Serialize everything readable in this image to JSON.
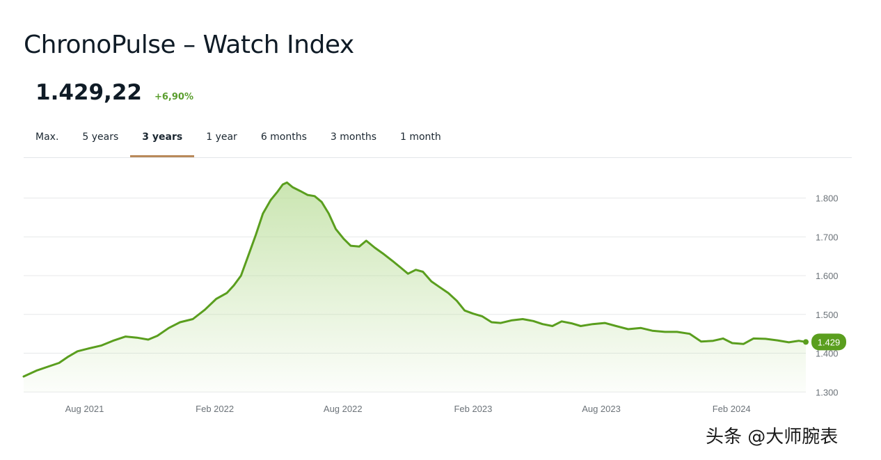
{
  "page": {
    "title": "ChronoPulse – Watch Index"
  },
  "price": {
    "value": "1.429,22",
    "change": "+6,90%"
  },
  "tabs": [
    {
      "label": "Max.",
      "active": false
    },
    {
      "label": "5 years",
      "active": false
    },
    {
      "label": "3 years",
      "active": true
    },
    {
      "label": "1 year",
      "active": false
    },
    {
      "label": "6 months",
      "active": false
    },
    {
      "label": "3 months",
      "active": false
    },
    {
      "label": "1 month",
      "active": false
    }
  ],
  "colors": {
    "line": "#5a9e1e",
    "accent_tab": "#b9895a",
    "badge": "#5a9e1e"
  },
  "chart_data": {
    "type": "area",
    "x_unit": "date",
    "y_ticks": [
      1300,
      1400,
      1500,
      1600,
      1700,
      1800
    ],
    "y_tick_labels": [
      "1.300",
      "1.400",
      "1.500",
      "1.600",
      "1.700",
      "1.800"
    ],
    "x_tick_dates": [
      "2021-08-01",
      "2022-02-01",
      "2022-08-01",
      "2023-02-01",
      "2023-08-01",
      "2024-02-01"
    ],
    "x_tick_labels": [
      "Aug 2021",
      "Feb 2022",
      "Aug 2022",
      "Feb 2023",
      "Aug 2023",
      "Feb 2024"
    ],
    "ylim": [
      1270,
      1880
    ],
    "grid": true,
    "current_value_label": "1.429",
    "series": [
      {
        "points": [
          [
            "2021-05-07",
            1340
          ],
          [
            "2021-05-25",
            1355
          ],
          [
            "2021-06-10",
            1365
          ],
          [
            "2021-06-26",
            1375
          ],
          [
            "2021-07-08",
            1390
          ],
          [
            "2021-07-22",
            1405
          ],
          [
            "2021-08-06",
            1412
          ],
          [
            "2021-08-25",
            1420
          ],
          [
            "2021-09-10",
            1432
          ],
          [
            "2021-09-28",
            1443
          ],
          [
            "2021-10-14",
            1440
          ],
          [
            "2021-10-30",
            1435
          ],
          [
            "2021-11-12",
            1445
          ],
          [
            "2021-11-28",
            1465
          ],
          [
            "2021-12-14",
            1480
          ],
          [
            "2022-01-01",
            1488
          ],
          [
            "2022-01-18",
            1512
          ],
          [
            "2022-02-03",
            1540
          ],
          [
            "2022-02-18",
            1555
          ],
          [
            "2022-02-28",
            1575
          ],
          [
            "2022-03-10",
            1600
          ],
          [
            "2022-03-20",
            1650
          ],
          [
            "2022-03-31",
            1705
          ],
          [
            "2022-04-10",
            1760
          ],
          [
            "2022-04-21",
            1795
          ],
          [
            "2022-04-30",
            1815
          ],
          [
            "2022-05-08",
            1835
          ],
          [
            "2022-05-14",
            1840
          ],
          [
            "2022-05-22",
            1828
          ],
          [
            "2022-06-02",
            1818
          ],
          [
            "2022-06-12",
            1808
          ],
          [
            "2022-06-22",
            1805
          ],
          [
            "2022-07-02",
            1790
          ],
          [
            "2022-07-12",
            1760
          ],
          [
            "2022-07-22",
            1720
          ],
          [
            "2022-08-02",
            1695
          ],
          [
            "2022-08-12",
            1677
          ],
          [
            "2022-08-24",
            1675
          ],
          [
            "2022-09-03",
            1690
          ],
          [
            "2022-09-15",
            1672
          ],
          [
            "2022-09-28",
            1655
          ],
          [
            "2022-10-10",
            1638
          ],
          [
            "2022-10-22",
            1620
          ],
          [
            "2022-11-01",
            1605
          ],
          [
            "2022-11-12",
            1615
          ],
          [
            "2022-11-22",
            1610
          ],
          [
            "2022-12-04",
            1585
          ],
          [
            "2022-12-16",
            1570
          ],
          [
            "2022-12-28",
            1555
          ],
          [
            "2023-01-09",
            1535
          ],
          [
            "2023-01-20",
            1510
          ],
          [
            "2023-02-01",
            1502
          ],
          [
            "2023-02-14",
            1495
          ],
          [
            "2023-02-27",
            1480
          ],
          [
            "2023-03-12",
            1478
          ],
          [
            "2023-03-28",
            1485
          ],
          [
            "2023-04-12",
            1488
          ],
          [
            "2023-04-27",
            1483
          ],
          [
            "2023-05-10",
            1475
          ],
          [
            "2023-05-24",
            1470
          ],
          [
            "2023-06-06",
            1482
          ],
          [
            "2023-06-20",
            1477
          ],
          [
            "2023-07-03",
            1470
          ],
          [
            "2023-07-20",
            1475
          ],
          [
            "2023-08-06",
            1478
          ],
          [
            "2023-08-22",
            1470
          ],
          [
            "2023-09-08",
            1462
          ],
          [
            "2023-09-26",
            1465
          ],
          [
            "2023-10-12",
            1458
          ],
          [
            "2023-10-30",
            1455
          ],
          [
            "2023-11-16",
            1455
          ],
          [
            "2023-12-04",
            1450
          ],
          [
            "2023-12-20",
            1430
          ],
          [
            "2024-01-06",
            1432
          ],
          [
            "2024-01-20",
            1438
          ],
          [
            "2024-02-02",
            1426
          ],
          [
            "2024-02-18",
            1424
          ],
          [
            "2024-03-03",
            1438
          ],
          [
            "2024-03-20",
            1437
          ],
          [
            "2024-04-06",
            1433
          ],
          [
            "2024-04-22",
            1428
          ],
          [
            "2024-05-06",
            1432
          ],
          [
            "2024-05-16",
            1429
          ]
        ]
      }
    ]
  },
  "watermark": {
    "text": "头条 @大师腕表"
  }
}
